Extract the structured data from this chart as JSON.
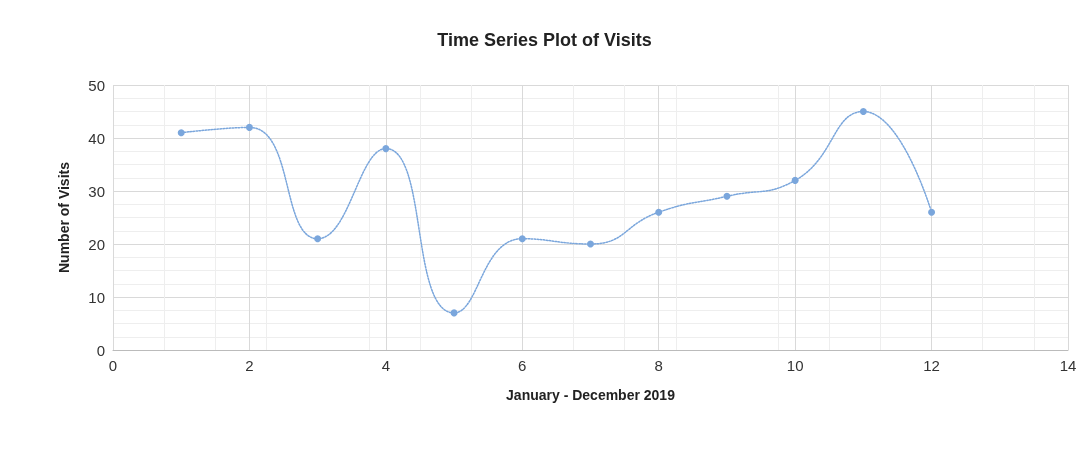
{
  "chart_data": {
    "type": "line",
    "title": "Time Series Plot of Visits",
    "xlabel": "January - December 2019",
    "ylabel": "Number of Visits",
    "x": [
      1,
      2,
      3,
      4,
      5,
      6,
      7,
      8,
      9,
      10,
      11,
      12
    ],
    "series": [
      {
        "color": "#7aa6dc",
        "values": [
          41,
          42,
          21,
          38,
          7,
          21,
          20,
          26,
          29,
          32,
          45,
          26
        ]
      }
    ],
    "xlim": [
      0,
      14
    ],
    "xticks": [
      0,
      2,
      4,
      6,
      8,
      10,
      12,
      14
    ],
    "ylim": [
      0,
      50
    ],
    "yticks": [
      0,
      10,
      20,
      30,
      40,
      50
    ],
    "grid": true,
    "marker": "circle",
    "line_style": "dotted"
  }
}
